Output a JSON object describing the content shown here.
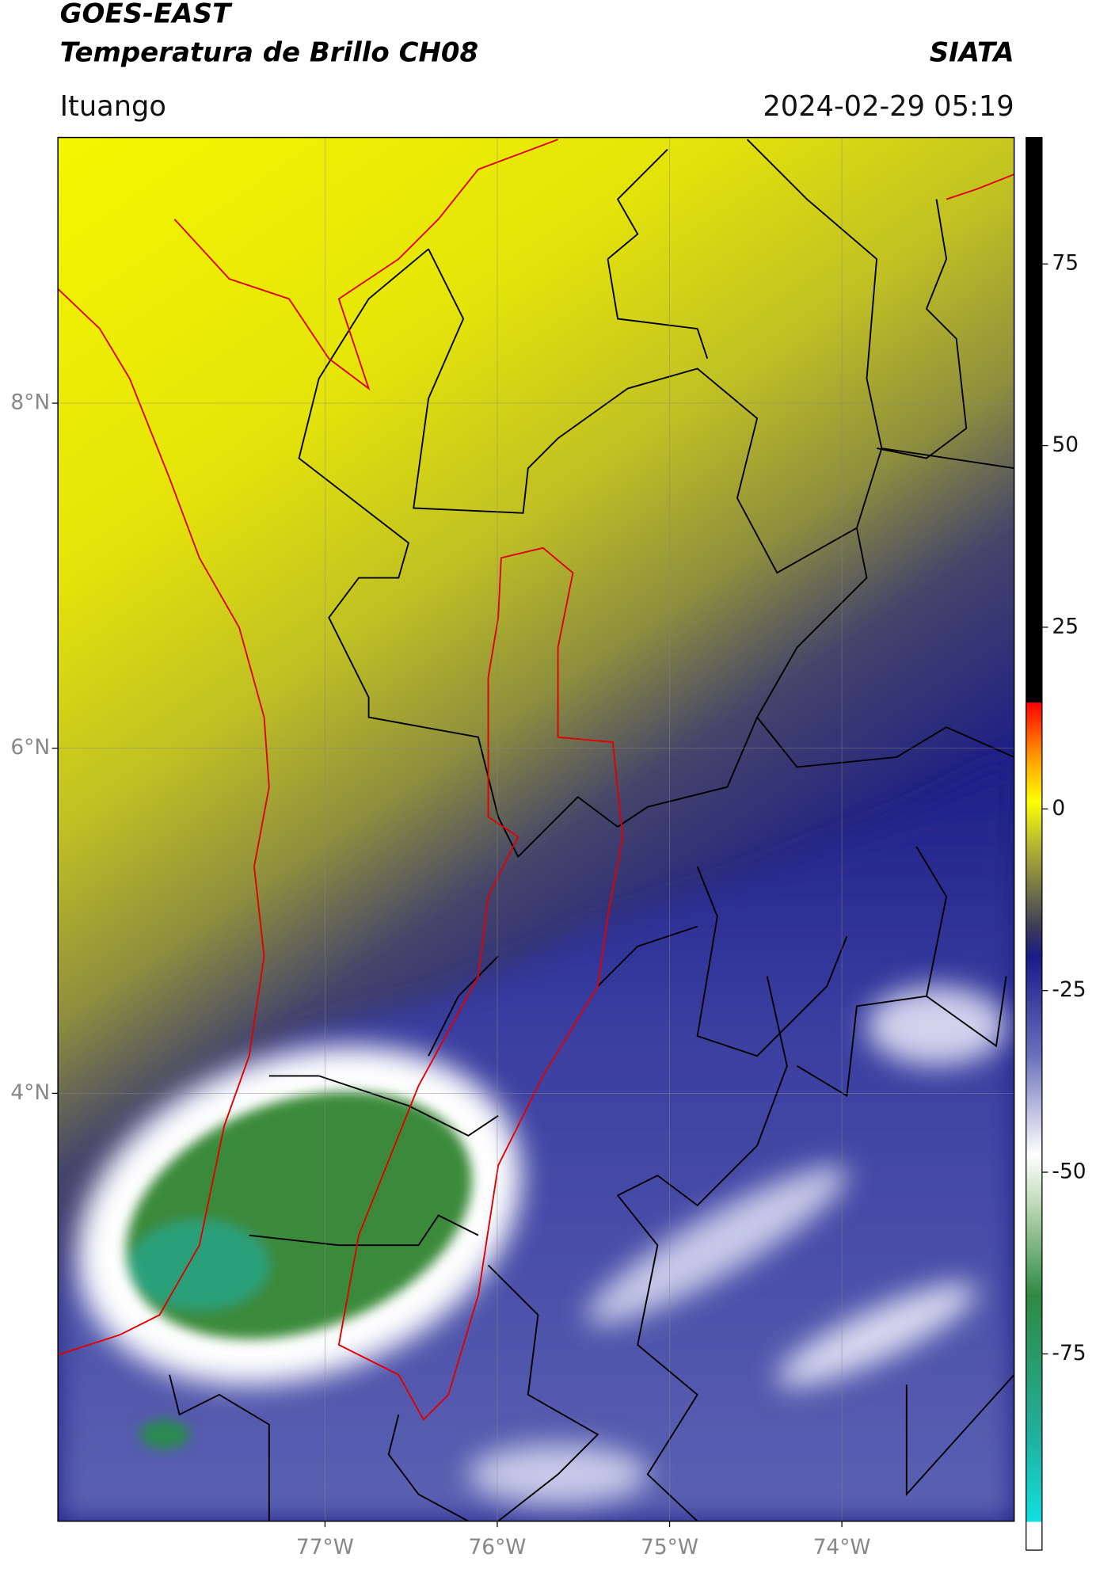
{
  "header": {
    "title": "GOES-EAST",
    "subtitle": "Temperatura de Brillo CH08",
    "brand": "SIATA",
    "location": "Ituango",
    "datetime": "2024-02-29 05:19"
  },
  "map": {
    "xlim": [
      -78.55,
      -73.0
    ],
    "ylim": [
      1.52,
      9.54
    ],
    "xticks": [
      {
        "value": -77,
        "label": "77°W"
      },
      {
        "value": -76,
        "label": "76°W"
      },
      {
        "value": -75,
        "label": "75°W"
      },
      {
        "value": -74,
        "label": "74°W"
      }
    ],
    "yticks": [
      {
        "value": 8,
        "label": "8°N"
      },
      {
        "value": 6,
        "label": "6°N"
      },
      {
        "value": 4,
        "label": "4°N"
      }
    ],
    "grid": true
  },
  "colorbar": {
    "lim": [
      -102,
      92.4
    ],
    "ticks": [
      75,
      50,
      25,
      0,
      -25,
      -50,
      -75
    ]
  }
}
